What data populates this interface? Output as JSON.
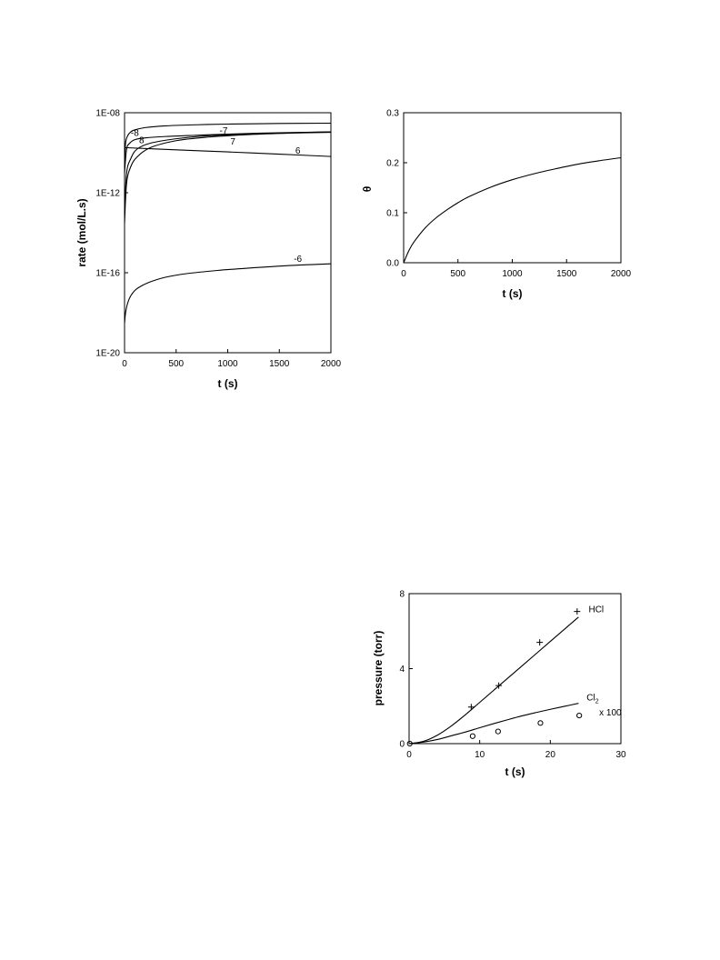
{
  "chart_data": [
    {
      "id": "rates",
      "type": "line",
      "xlabel": "t (s)",
      "ylabel": "rate (mol/L.s)",
      "xlim": [
        0,
        2000
      ],
      "ylim": [
        1e-20,
        1e-08
      ],
      "yscale": "log",
      "xticks": [
        0,
        500,
        1000,
        1500,
        2000
      ],
      "yticks": [
        "1E-08",
        "1E-12",
        "1E-16",
        "1E-20"
      ],
      "ytick_values": [
        1e-08,
        1e-12,
        1e-16,
        1e-20
      ],
      "grid": false,
      "series": [
        {
          "name": "-8",
          "x": [
            0,
            10,
            30,
            60,
            100,
            200,
            400,
            700,
            1000,
            1500,
            2000
          ],
          "y": [
            2e-11,
            3e-10,
            7e-10,
            1.1e-09,
            1.4e-09,
            1.8e-09,
            2.2e-09,
            2.5e-09,
            2.7e-09,
            2.9e-09,
            3e-09
          ],
          "label_at": [
            100,
            7e-10
          ]
        },
        {
          "name": "-7",
          "x": [
            0,
            20,
            60,
            120,
            250,
            500,
            800,
            1200,
            1600,
            2000
          ],
          "y": [
            1e-13,
            1e-11,
            5e-11,
            1.5e-10,
            3e-10,
            5e-10,
            7e-10,
            8.5e-10,
            1e-09,
            1.1e-09
          ],
          "label_at": [
            960,
            9e-10
          ]
        },
        {
          "name": "8",
          "x": [
            0,
            20,
            50,
            100,
            200,
            400,
            700,
            1000,
            1500,
            2000
          ],
          "y": [
            1e-11,
            1.5e-10,
            3e-10,
            4.5e-10,
            5.5e-10,
            6.5e-10,
            7.5e-10,
            8.5e-10,
            1e-09,
            1.1e-09
          ],
          "label_at": [
            165,
            3e-10
          ]
        },
        {
          "name": "7",
          "x": [
            0,
            20,
            60,
            120,
            250,
            500,
            800,
            1200,
            1600,
            2000
          ],
          "y": [
            3e-14,
            3e-12,
            2e-11,
            6e-11,
            1.8e-10,
            4e-10,
            6e-10,
            8e-10,
            9.5e-10,
            1.05e-09
          ],
          "label_at": [
            1050,
            2.5e-10
          ]
        },
        {
          "name": "6",
          "x": [
            0,
            500,
            1000,
            1500,
            2000
          ],
          "y": [
            1.8e-10,
            1.4e-10,
            1.1e-10,
            8.5e-11,
            6.5e-11
          ],
          "label_at": [
            1680,
            9e-11
          ]
        },
        {
          "name": "-6",
          "x": [
            0,
            10,
            30,
            60,
            100,
            150,
            250,
            400,
            600,
            900,
            1200,
            1600,
            2000
          ],
          "y": [
            3e-19,
            1e-18,
            3e-18,
            7e-18,
            1.3e-17,
            2e-17,
            3.5e-17,
            6e-17,
            9e-17,
            1.3e-16,
            1.7e-16,
            2.3e-16,
            2.8e-16
          ],
          "label_at": [
            1680,
            3.5e-16
          ]
        }
      ]
    },
    {
      "id": "theta",
      "type": "line",
      "xlabel": "t (s)",
      "ylabel": "θ",
      "xlim": [
        0,
        2000
      ],
      "ylim": [
        0,
        0.3
      ],
      "xticks": [
        0,
        500,
        1000,
        1500,
        2000
      ],
      "yticks": [
        0.0,
        0.1,
        0.2,
        0.3
      ],
      "ytick_labels": [
        "0.0",
        "0.1",
        "0.2",
        "0.3"
      ],
      "grid": false,
      "series": [
        {
          "name": "",
          "x": [
            0,
            50,
            100,
            200,
            300,
            400,
            500,
            600,
            800,
            1000,
            1200,
            1400,
            1600,
            1800,
            2000
          ],
          "y": [
            0,
            0.025,
            0.043,
            0.07,
            0.09,
            0.106,
            0.12,
            0.132,
            0.151,
            0.166,
            0.178,
            0.188,
            0.197,
            0.204,
            0.21
          ]
        }
      ]
    },
    {
      "id": "pressure",
      "type": "line",
      "xlabel": "t (s)",
      "ylabel": "pressure (torr)",
      "xlim": [
        0,
        30
      ],
      "ylim": [
        0,
        8
      ],
      "xticks": [
        0,
        10,
        20,
        30
      ],
      "yticks": [
        0,
        4,
        8
      ],
      "grid": false,
      "series": [
        {
          "name": "HCl",
          "x": [
            0,
            2,
            4,
            6,
            8,
            10,
            12,
            14,
            16,
            18,
            20,
            22,
            24
          ],
          "y": [
            0,
            0.12,
            0.45,
            0.95,
            1.55,
            2.2,
            2.85,
            3.5,
            4.15,
            4.8,
            5.45,
            6.1,
            6.75
          ],
          "label_at": [
            26.5,
            7.0
          ]
        },
        {
          "name": "Cl",
          "sub": "2",
          "extra": "x 100",
          "x": [
            0,
            2,
            4,
            6,
            8,
            10,
            12,
            14,
            16,
            18,
            20,
            22,
            24
          ],
          "y": [
            0,
            0.08,
            0.22,
            0.42,
            0.62,
            0.85,
            1.07,
            1.28,
            1.48,
            1.66,
            1.83,
            1.99,
            2.15
          ],
          "label_at": [
            26,
            2.3
          ],
          "extra_at": [
            28.5,
            1.5
          ]
        }
      ],
      "points": [
        {
          "marker": "plus",
          "x": [
            8.8,
            12.7,
            18.5,
            23.8
          ],
          "y": [
            1.95,
            3.1,
            5.4,
            7.05
          ]
        },
        {
          "marker": "circle",
          "x": [
            0.1,
            9.0,
            12.6,
            18.6,
            24.1
          ],
          "y": [
            0.0,
            0.4,
            0.65,
            1.1,
            1.5
          ]
        }
      ]
    }
  ]
}
